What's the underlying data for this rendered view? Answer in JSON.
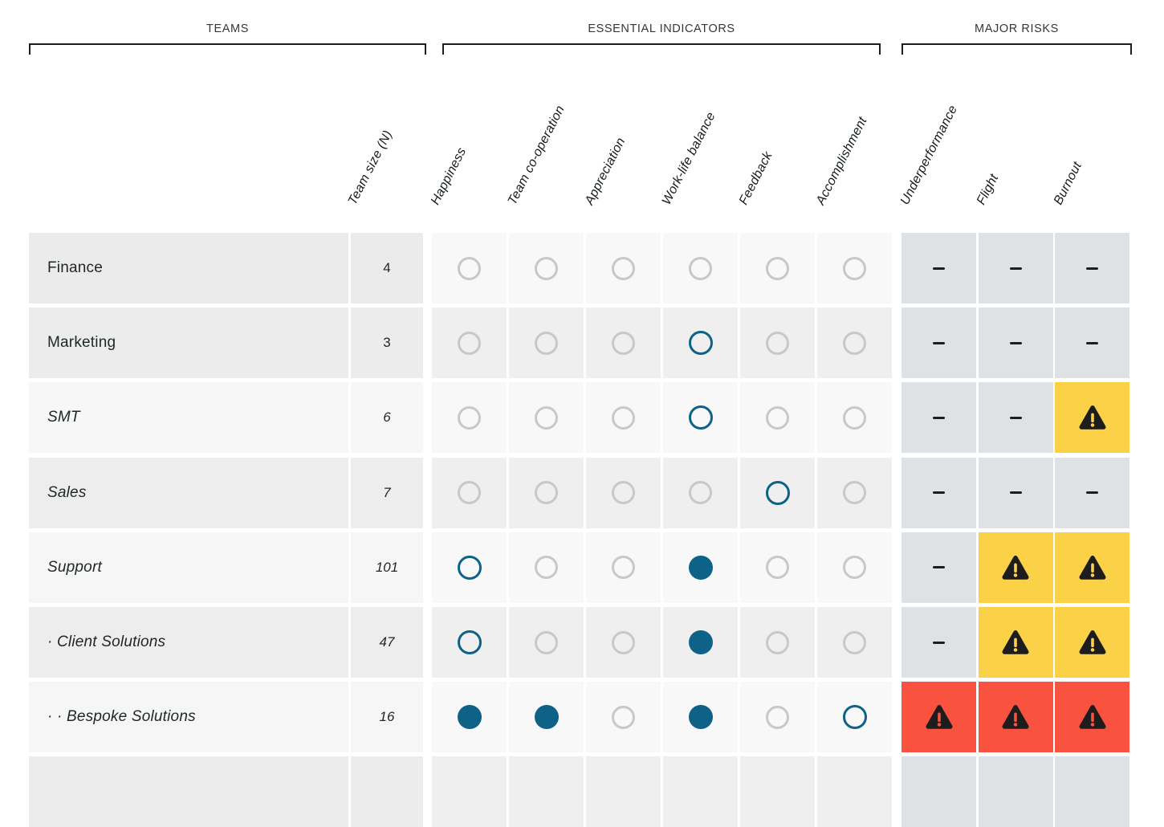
{
  "chart_data": {
    "type": "table",
    "title": "",
    "group_labels": [
      "TEAMS",
      "ESSENTIAL INDICATORS",
      "MAJOR RISKS"
    ],
    "size_column_label": "Team size (N)",
    "indicator_columns": [
      "Happiness",
      "Team co-operation",
      "Appreciation",
      "Work-life balance",
      "Feedback",
      "Accomplishment"
    ],
    "risk_columns": [
      "Underperformance",
      "Flight",
      "Burnout"
    ],
    "encoding": {
      "indicator_states": {
        "empty": "gray outlined circle",
        "ring": "teal outlined circle",
        "filled": "teal filled circle",
        "blank": "cell cut off at page bottom, no mark visible"
      },
      "risk_states": {
        "dash": "gray cell with black dash",
        "warn": "yellow cell with black warning triangle",
        "alert": "red cell with black warning triangle",
        "blank": "cell cut off at page bottom, no mark visible"
      }
    },
    "rows": [
      {
        "team": "Finance",
        "italic": false,
        "size": "4",
        "indicators": [
          "empty",
          "empty",
          "empty",
          "empty",
          "empty",
          "empty"
        ],
        "risks": [
          "dash",
          "dash",
          "dash"
        ]
      },
      {
        "team": "Marketing",
        "italic": false,
        "size": "3",
        "indicators": [
          "empty",
          "empty",
          "empty",
          "ring",
          "empty",
          "empty"
        ],
        "risks": [
          "dash",
          "dash",
          "dash"
        ]
      },
      {
        "team": "SMT",
        "italic": true,
        "size": "6",
        "indicators": [
          "empty",
          "empty",
          "empty",
          "ring",
          "empty",
          "empty"
        ],
        "risks": [
          "dash",
          "dash",
          "warn"
        ]
      },
      {
        "team": "Sales",
        "italic": true,
        "size": "7",
        "indicators": [
          "empty",
          "empty",
          "empty",
          "empty",
          "ring",
          "empty"
        ],
        "risks": [
          "dash",
          "dash",
          "dash"
        ]
      },
      {
        "team": "Support",
        "italic": true,
        "size": "101",
        "indicators": [
          "ring",
          "empty",
          "empty",
          "filled",
          "empty",
          "empty"
        ],
        "risks": [
          "dash",
          "warn",
          "warn"
        ]
      },
      {
        "team": "· Client Solutions",
        "italic": true,
        "size": "47",
        "indicators": [
          "ring",
          "empty",
          "empty",
          "filled",
          "empty",
          "empty"
        ],
        "risks": [
          "dash",
          "warn",
          "warn"
        ]
      },
      {
        "team": "· · Bespoke Solutions",
        "italic": true,
        "size": "16",
        "indicators": [
          "filled",
          "filled",
          "empty",
          "filled",
          "empty",
          "ring"
        ],
        "risks": [
          "alert",
          "alert",
          "alert"
        ]
      },
      {
        "team": "",
        "italic": false,
        "size": "",
        "indicators": [
          "blank",
          "blank",
          "blank",
          "blank",
          "blank",
          "blank"
        ],
        "risks": [
          "blank",
          "blank",
          "blank"
        ]
      }
    ]
  },
  "style": {
    "colors": {
      "accent_teal": "#0e6287",
      "warning_yellow": "#fbd247",
      "alert_red": "#f9523f",
      "risk_neutral": "#dee2e5",
      "circle_gray": "#c8c8c8",
      "icon_ink": "#1d1d1d",
      "text_dark": "#1d2726",
      "header_text": "#323838"
    },
    "row_shades": [
      [
        "#ebebeb",
        "#f8f8f8"
      ],
      [
        "#ececec",
        "#efefef"
      ],
      [
        "#f7f7f7",
        "#f8f8f8"
      ],
      [
        "#ededed",
        "#efefef"
      ],
      [
        "#f6f6f6",
        "#f8f8f8"
      ],
      [
        "#ededed",
        "#efefef"
      ],
      [
        "#f6f6f6",
        "#f8f8f8"
      ],
      [
        "#ececec",
        "#efefef"
      ]
    ]
  }
}
